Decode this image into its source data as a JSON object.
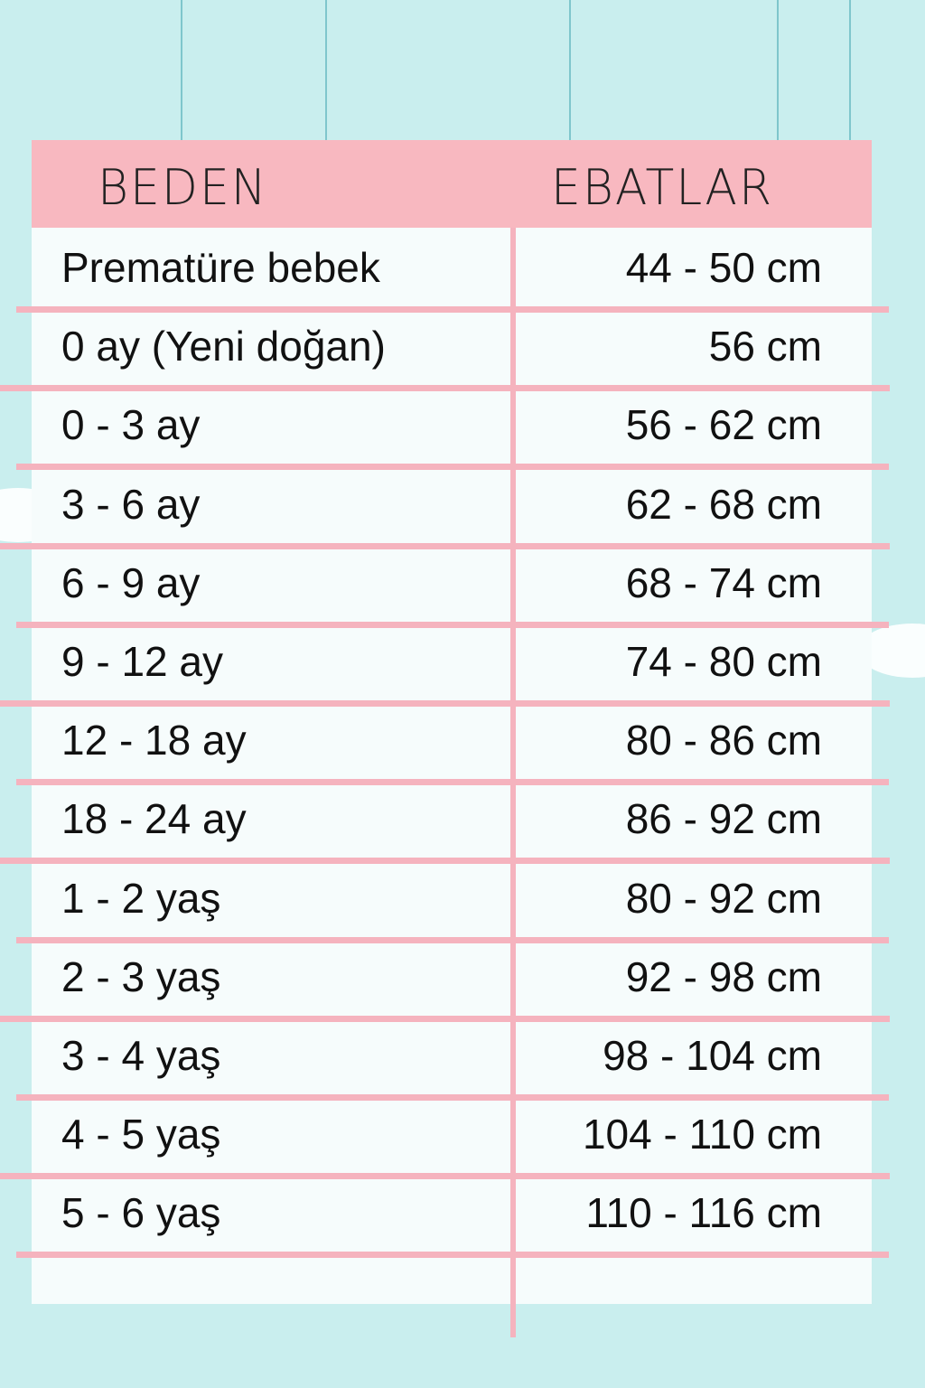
{
  "colors": {
    "background": "#c9eeee",
    "header": "#f8b8c0",
    "lines": "#f5b3be",
    "panel": "#f6fcfc"
  },
  "table": {
    "headers": [
      "BEDEN",
      "EBATLAR"
    ],
    "rows": [
      {
        "size": "Prematüre bebek",
        "dimension": "44 - 50 cm"
      },
      {
        "size": "0 ay (Yeni doğan)",
        "dimension": "56 cm"
      },
      {
        "size": "0 - 3 ay",
        "dimension": "56 - 62 cm"
      },
      {
        "size": "3 - 6 ay",
        "dimension": "62 - 68 cm"
      },
      {
        "size": "6 - 9 ay",
        "dimension": "68 - 74 cm"
      },
      {
        "size": "9 - 12 ay",
        "dimension": "74 - 80 cm"
      },
      {
        "size": "12 - 18 ay",
        "dimension": "80 - 86 cm"
      },
      {
        "size": "18 - 24 ay",
        "dimension": "86 - 92 cm"
      },
      {
        "size": "1 - 2 yaş",
        "dimension": "80 - 92 cm"
      },
      {
        "size": "2 - 3 yaş",
        "dimension": "92 - 98 cm"
      },
      {
        "size": "3 - 4 yaş",
        "dimension": "98 - 104 cm"
      },
      {
        "size": "4 - 5 yaş",
        "dimension": "104 - 110 cm"
      },
      {
        "size": "5 - 6 yaş",
        "dimension": "110 - 116 cm"
      }
    ]
  }
}
